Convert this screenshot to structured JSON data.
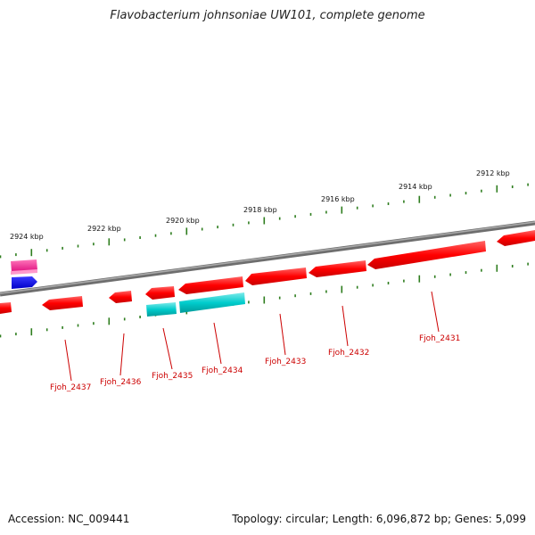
{
  "title": "Flavobacterium johnsoniae UW101, complete genome",
  "accession_text": "Accession: NC_009441",
  "summary_text": "Topology: circular; Length: 6,096,872 bp; Genes: 5,099",
  "colors": {
    "backbone": "#808080",
    "ticks": "#2e7d1e",
    "cds": "#ff0000",
    "cds_label": "#cc0000",
    "cyan_feature": "#00c8c8",
    "pink_feature": "#ff3399",
    "blue_feature": "#0000ff"
  },
  "scale_labels": [
    "2924 kbp",
    "2922 kbp",
    "2920 kbp",
    "2918 kbp",
    "2916 kbp",
    "2914 kbp",
    "2912 kbp"
  ],
  "gene_labels": [
    "Fjoh_2437",
    "Fjoh_2436",
    "Fjoh_2435",
    "Fjoh_2434",
    "Fjoh_2433",
    "Fjoh_2432",
    "Fjoh_2431"
  ]
}
